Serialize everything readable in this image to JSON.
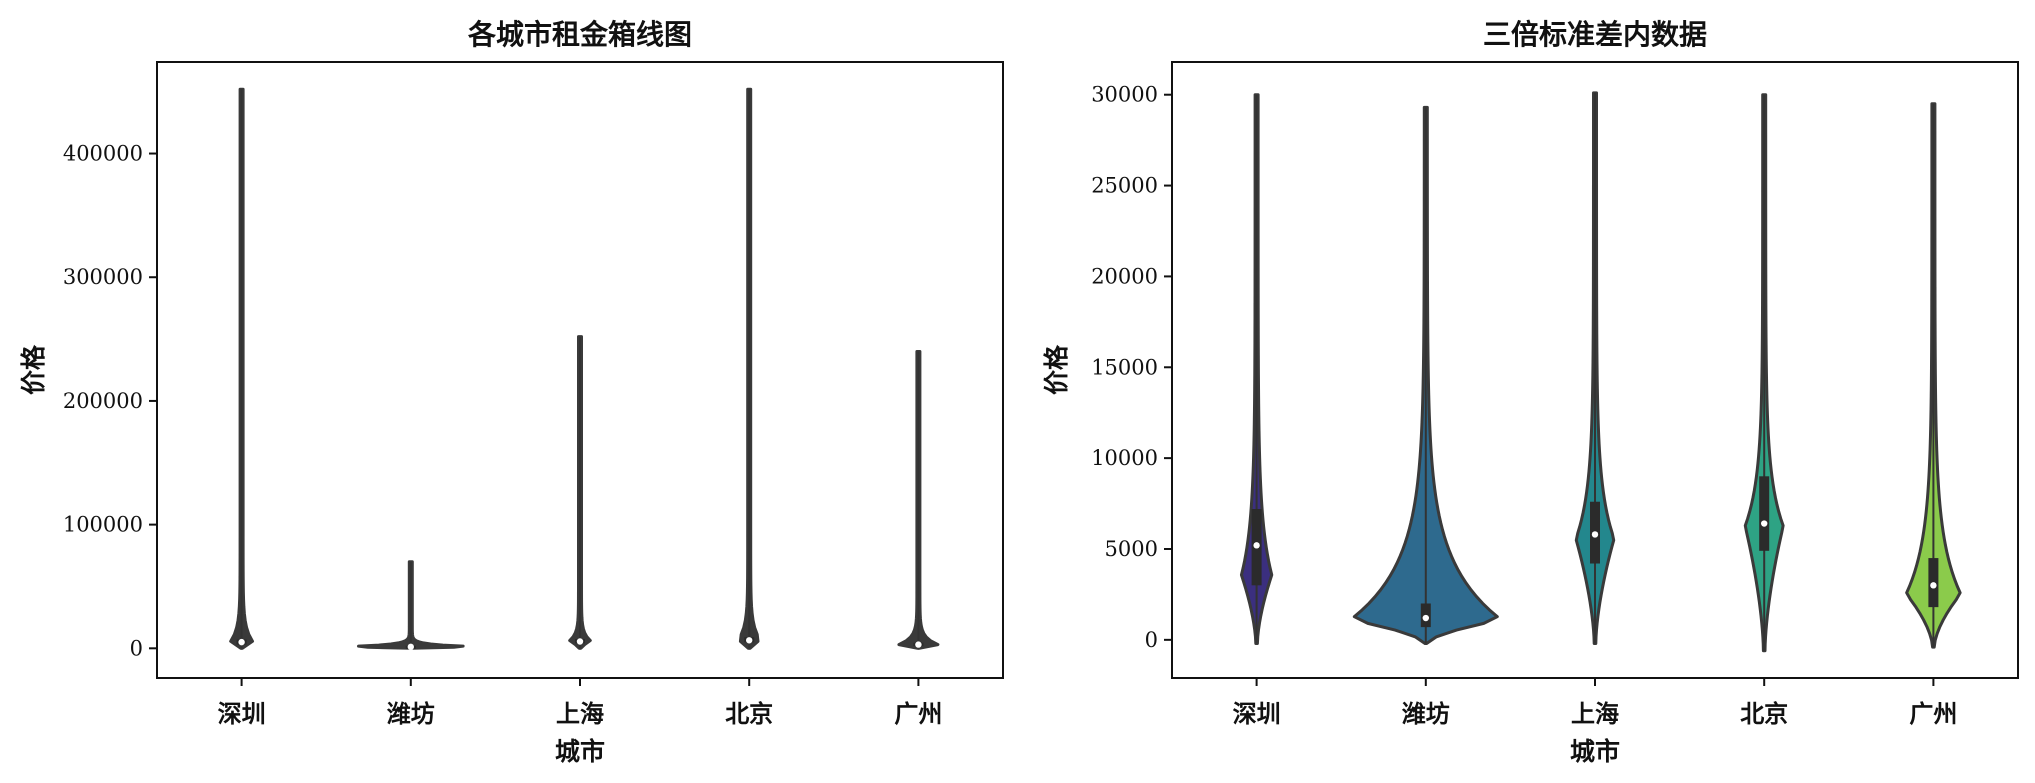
{
  "chart_data": [
    {
      "type": "violin",
      "title": "各城市租金箱线图",
      "xlabel": "城市",
      "ylabel": "价格",
      "ylim": [
        -24000,
        474000
      ],
      "yticks": [
        0,
        100000,
        200000,
        300000,
        400000
      ],
      "categories": [
        "深圳",
        "潍坊",
        "上海",
        "北京",
        "广州"
      ],
      "violins": [
        {
          "name": "深圳",
          "min": 0,
          "max": 452000,
          "q1": 3000,
          "median": 5000,
          "q3": 7000,
          "color": "#3a3a3a"
        },
        {
          "name": "潍坊",
          "min": 0,
          "max": 70000,
          "q1": 600,
          "median": 1200,
          "q3": 2000,
          "color": "#3a3a3a"
        },
        {
          "name": "上海",
          "min": 0,
          "max": 252000,
          "q1": 4000,
          "median": 5500,
          "q3": 7500,
          "color": "#3a3a3a"
        },
        {
          "name": "北京",
          "min": 0,
          "max": 452000,
          "q1": 4800,
          "median": 6500,
          "q3": 9000,
          "color": "#3a3a3a"
        },
        {
          "name": "广州",
          "min": 0,
          "max": 240000,
          "q1": 1800,
          "median": 3000,
          "q3": 4500,
          "color": "#3a3a3a"
        }
      ],
      "grid": false
    },
    {
      "type": "violin",
      "title": "三倍标准差内数据",
      "xlabel": "城市",
      "ylabel": "价格",
      "ylim": [
        -2100,
        31800
      ],
      "yticks": [
        0,
        5000,
        10000,
        15000,
        20000,
        25000,
        30000
      ],
      "categories": [
        "深圳",
        "潍坊",
        "上海",
        "北京",
        "广州"
      ],
      "violins": [
        {
          "name": "深圳",
          "min": -200,
          "max": 30000,
          "q1": 3000,
          "median": 5200,
          "q3": 7200,
          "peak_at": 3500,
          "color": "#3b2f7f"
        },
        {
          "name": "潍坊",
          "min": -200,
          "max": 29300,
          "q1": 700,
          "median": 1200,
          "q3": 2000,
          "peak_at": 1100,
          "color": "#2e6a8e"
        },
        {
          "name": "上海",
          "min": -200,
          "max": 30100,
          "q1": 4200,
          "median": 5800,
          "q3": 7600,
          "peak_at": 5500,
          "color": "#23878d"
        },
        {
          "name": "北京",
          "min": -600,
          "max": 30000,
          "q1": 4900,
          "median": 6400,
          "q3": 9000,
          "peak_at": 6200,
          "color": "#2ea384"
        },
        {
          "name": "广州",
          "min": -400,
          "max": 29500,
          "q1": 1800,
          "median": 3000,
          "q3": 4500,
          "peak_at": 2500,
          "color": "#8bcb4b"
        }
      ],
      "grid": false
    }
  ]
}
